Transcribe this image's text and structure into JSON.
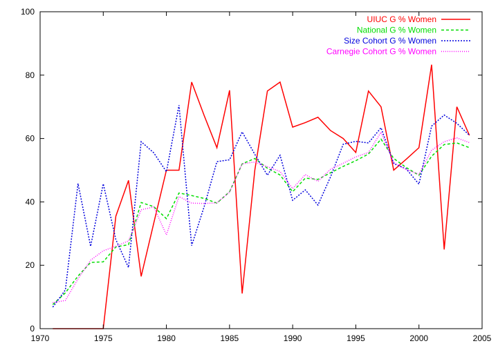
{
  "chart_data": {
    "type": "line",
    "title": "",
    "xlabel": "",
    "ylabel": "",
    "xlim": [
      1970,
      2005
    ],
    "ylim": [
      0,
      100
    ],
    "xticks": [
      1970,
      1975,
      1980,
      1985,
      1990,
      1995,
      2000,
      2005
    ],
    "yticks": [
      0,
      20,
      40,
      60,
      80,
      100
    ],
    "grid": false,
    "legend_position": "top-right",
    "series": [
      {
        "name": "UIUC G % Women",
        "color": "#ff0000",
        "dash": "solid",
        "x": [
          1971,
          1972,
          1973,
          1974,
          1975,
          1976,
          1977,
          1978,
          1979,
          1980,
          1981,
          1982,
          1983,
          1984,
          1985,
          1986,
          1987,
          1988,
          1989,
          1990,
          1991,
          1992,
          1993,
          1994,
          1995,
          1996,
          1997,
          1998,
          1999,
          2000,
          2001,
          2002,
          2003,
          2004
        ],
        "values": [
          0,
          0,
          0,
          0,
          0,
          35.5,
          46.8,
          16.5,
          33.3,
          50,
          50,
          77.8,
          67.2,
          57.1,
          75.2,
          11.1,
          50,
          75,
          77.8,
          63.6,
          65,
          66.7,
          62.5,
          60,
          55.6,
          75,
          70,
          50,
          53.5,
          57.1,
          83.3,
          25,
          70,
          61
        ]
      },
      {
        "name": "National G % Women",
        "color": "#00dd00",
        "dash": "dashed",
        "x": [
          1971,
          1972,
          1973,
          1974,
          1975,
          1976,
          1977,
          1978,
          1979,
          1980,
          1981,
          1982,
          1983,
          1984,
          1985,
          1986,
          1987,
          1988,
          1989,
          1990,
          1991,
          1992,
          1993,
          1994,
          1995,
          1996,
          1997,
          1998,
          1999,
          2000,
          2001,
          2002,
          2003,
          2004
        ],
        "values": [
          7.6,
          11.3,
          16.6,
          20.9,
          21.1,
          25.8,
          26.5,
          39.8,
          38.5,
          34.7,
          42.8,
          42,
          41.1,
          39.6,
          43.2,
          52,
          53.7,
          50.6,
          48.5,
          43.2,
          47.5,
          47.1,
          49.2,
          51.2,
          53,
          55.1,
          59.8,
          53.7,
          50.8,
          48.4,
          54.4,
          58.1,
          58.6,
          57.1
        ]
      },
      {
        "name": "Size Cohort G % Women",
        "color": "#0000dd",
        "dash": "dotted",
        "x": [
          1971,
          1972,
          1973,
          1974,
          1975,
          1976,
          1977,
          1978,
          1979,
          1980,
          1981,
          1982,
          1983,
          1984,
          1985,
          1986,
          1987,
          1988,
          1989,
          1990,
          1991,
          1992,
          1993,
          1994,
          1995,
          1996,
          1997,
          1998,
          1999,
          2000,
          2001,
          2002,
          2003,
          2004
        ],
        "values": [
          6.8,
          12.2,
          45.8,
          26,
          45.7,
          28.1,
          19.3,
          59,
          55.5,
          49.5,
          70.5,
          26.2,
          38.6,
          52.7,
          53.3,
          62.1,
          55,
          48.4,
          54.7,
          40.5,
          43.8,
          39,
          47.9,
          58.2,
          59.1,
          58.6,
          63.4,
          52.1,
          50.4,
          45.6,
          63.9,
          67.4,
          64.8,
          61
        ]
      },
      {
        "name": "Carnegie Cohort G % Women",
        "color": "#ff00ff",
        "dash": "fine-dotted",
        "x": [
          1971,
          1972,
          1973,
          1974,
          1975,
          1976,
          1977,
          1978,
          1979,
          1980,
          1981,
          1982,
          1983,
          1984,
          1985,
          1986,
          1987,
          1988,
          1989,
          1990,
          1991,
          1992,
          1993,
          1994,
          1995,
          1996,
          1997,
          1998,
          1999,
          2000,
          2001,
          2002,
          2003,
          2004
        ],
        "values": [
          8.2,
          8.9,
          15.7,
          21.6,
          24.6,
          26,
          27.7,
          37.5,
          38.4,
          29.6,
          41.7,
          39.6,
          39.5,
          39.7,
          43.1,
          52,
          52.6,
          51.1,
          49.6,
          44.2,
          48.6,
          46.5,
          50.3,
          52.2,
          54.2,
          55.6,
          62,
          52.4,
          50.2,
          48.7,
          56.3,
          59,
          60.2,
          58.7
        ]
      }
    ]
  }
}
